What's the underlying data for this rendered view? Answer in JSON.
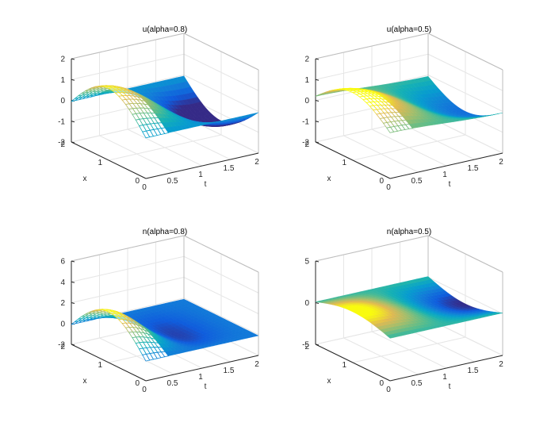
{
  "chart_data": [
    {
      "type": "surface",
      "title": "u(alpha=0.8)",
      "xlabel": "x",
      "tlabel": "t",
      "x_ticks": [
        "0",
        "1",
        "2"
      ],
      "t_ticks": [
        "0",
        "0.5",
        "1",
        "1.5",
        "2"
      ],
      "z_ticks": [
        "-2",
        "-1",
        "0",
        "1",
        "2"
      ],
      "x_range": [
        0,
        2
      ],
      "t_range": [
        0,
        2
      ],
      "z_range": [
        -2,
        2
      ],
      "peak_value": 1.5,
      "trough_value": -0.9,
      "colormap": "parula",
      "grid": true
    },
    {
      "type": "surface",
      "title": "u(alpha=0.5)",
      "xlabel": "x",
      "tlabel": "t",
      "x_ticks": [
        "0",
        "1",
        "2"
      ],
      "t_ticks": [
        "0",
        "0.5",
        "1",
        "1.5",
        "2"
      ],
      "z_ticks": [
        "-2",
        "-1",
        "0",
        "1",
        "2"
      ],
      "x_range": [
        0,
        2
      ],
      "t_range": [
        0,
        2
      ],
      "z_range": [
        -2,
        2
      ],
      "peak_value": 1.0,
      "trough_value": -1.3,
      "colormap": "parula",
      "grid": true
    },
    {
      "type": "surface",
      "title": "n(alpha=0.8)",
      "xlabel": "x",
      "tlabel": "t",
      "x_ticks": [
        "0",
        "1",
        "2"
      ],
      "t_ticks": [
        "0",
        "0.5",
        "1",
        "1.5",
        "2"
      ],
      "z_ticks": [
        "-2",
        "0",
        "2",
        "4",
        "6"
      ],
      "x_range": [
        0,
        2
      ],
      "t_range": [
        0,
        2
      ],
      "z_range": [
        -2,
        6
      ],
      "peak_value": 2.8,
      "trough_value": -1.0,
      "colormap": "parula",
      "grid": true
    },
    {
      "type": "surface",
      "title": "n(alpha=0.5)",
      "xlabel": "x",
      "tlabel": "t",
      "x_ticks": [
        "0",
        "1",
        "2"
      ],
      "t_ticks": [
        "0",
        "0.5",
        "1",
        "1.5",
        "2"
      ],
      "z_ticks": [
        "-5",
        "0",
        "5"
      ],
      "x_range": [
        0,
        2
      ],
      "t_range": [
        0,
        2
      ],
      "z_range": [
        -5,
        5
      ],
      "peak_value": 1.0,
      "trough_value": -1.0,
      "colormap": "parula",
      "grid": true
    }
  ]
}
